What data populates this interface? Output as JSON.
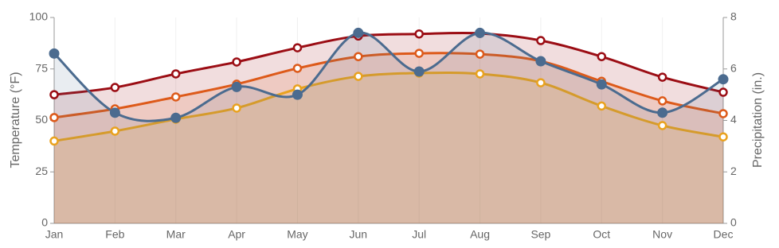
{
  "chart_data": {
    "type": "line",
    "categories": [
      "Jan",
      "Feb",
      "Mar",
      "Apr",
      "May",
      "Jun",
      "Jul",
      "Aug",
      "Sep",
      "Oct",
      "Nov",
      "Dec"
    ],
    "y_label": "Temperature (°F)",
    "y2_label": "Precipitation (in.)",
    "ylim": [
      0,
      100
    ],
    "yticks": [
      0,
      25,
      50,
      75,
      100
    ],
    "y2lim": [
      0,
      8
    ],
    "y2ticks": [
      0,
      2,
      4,
      6,
      8
    ],
    "series": [
      {
        "color": "#9b0d14",
        "values": [
          62.5,
          66,
          72.6,
          78.4,
          85.3,
          91,
          92,
          92.3,
          88.8,
          81,
          71,
          63.7
        ]
      },
      {
        "color": "#dd5a1a",
        "values": [
          51.4,
          55.6,
          61.4,
          67.6,
          75.3,
          81,
          82.6,
          82.2,
          78.8,
          69,
          59.5,
          53.3
        ]
      },
      {
        "color": "#e9a21f",
        "values": [
          40,
          44.8,
          50.6,
          56,
          65.3,
          71.4,
          73,
          72.6,
          68.3,
          57,
          47.5,
          42
        ]
      },
      {
        "color": "#4b6b8f",
        "axis": "y2",
        "values": [
          6.6,
          4.3,
          4.1,
          5.3,
          5.0,
          7.4,
          5.9,
          7.4,
          6.3,
          5.4,
          4.3,
          5.6
        ]
      }
    ]
  }
}
